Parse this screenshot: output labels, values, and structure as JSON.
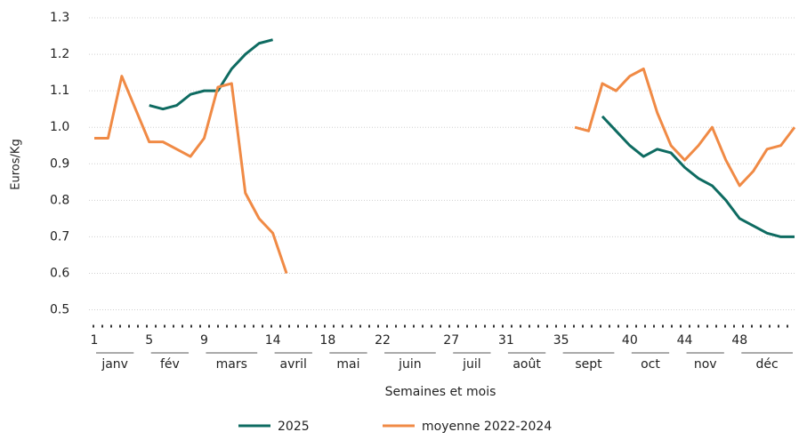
{
  "chart_data": {
    "type": "line",
    "x_label": "Semaines et mois",
    "y_label": "Euros/Kg",
    "x": [
      1,
      2,
      3,
      4,
      5,
      6,
      7,
      8,
      9,
      10,
      11,
      12,
      13,
      14,
      15,
      16,
      17,
      18,
      19,
      20,
      21,
      22,
      23,
      24,
      25,
      26,
      27,
      28,
      29,
      30,
      31,
      32,
      33,
      34,
      35,
      36,
      37,
      38,
      39,
      40,
      41,
      42,
      43,
      44,
      45,
      46,
      47,
      48,
      49,
      50,
      51,
      52
    ],
    "series": [
      {
        "name": "2025",
        "color": "#0e6b61",
        "values": [
          null,
          null,
          null,
          null,
          1.06,
          1.05,
          1.06,
          1.09,
          1.1,
          1.1,
          1.16,
          1.2,
          1.23,
          1.24,
          null,
          null,
          null,
          null,
          null,
          null,
          null,
          null,
          null,
          null,
          null,
          null,
          null,
          null,
          null,
          null,
          null,
          null,
          null,
          null,
          null,
          null,
          null,
          1.03,
          0.99,
          0.95,
          0.92,
          0.94,
          0.93,
          0.89,
          0.86,
          0.84,
          0.8,
          0.75,
          0.73,
          0.71,
          0.7,
          0.7
        ]
      },
      {
        "name": "moyenne 2022-2024",
        "color": "#f08a45",
        "values": [
          0.97,
          0.97,
          1.14,
          1.05,
          0.96,
          0.96,
          0.94,
          0.92,
          0.97,
          1.11,
          1.12,
          0.82,
          0.75,
          0.71,
          0.6,
          null,
          null,
          null,
          null,
          null,
          null,
          null,
          null,
          null,
          null,
          null,
          null,
          null,
          null,
          null,
          null,
          null,
          null,
          null,
          null,
          1.0,
          0.99,
          1.12,
          1.1,
          1.14,
          1.16,
          1.04,
          0.95,
          0.91,
          0.95,
          1.0,
          0.91,
          0.84,
          0.88,
          0.94,
          0.95,
          1.0
        ]
      }
    ],
    "xlim": [
      1,
      52
    ],
    "xticks": [
      1,
      5,
      9,
      14,
      18,
      22,
      27,
      31,
      35,
      40,
      44,
      48
    ],
    "months": [
      {
        "label": "janv",
        "start": 1,
        "end": 4
      },
      {
        "label": "fév",
        "start": 5,
        "end": 8
      },
      {
        "label": "mars",
        "start": 9,
        "end": 13
      },
      {
        "label": "avril",
        "start": 14,
        "end": 17
      },
      {
        "label": "mai",
        "start": 18,
        "end": 21
      },
      {
        "label": "juin",
        "start": 22,
        "end": 26
      },
      {
        "label": "juil",
        "start": 27,
        "end": 30
      },
      {
        "label": "août",
        "start": 31,
        "end": 34
      },
      {
        "label": "sept",
        "start": 35,
        "end": 39
      },
      {
        "label": "oct",
        "start": 40,
        "end": 43
      },
      {
        "label": "nov",
        "start": 44,
        "end": 47
      },
      {
        "label": "déc",
        "start": 48,
        "end": 52
      }
    ],
    "ylim": [
      0.455,
      1.3
    ],
    "yticks": [
      0.5,
      0.6,
      0.7,
      0.8,
      0.9,
      {
        "value": 1,
        "label": "1.0"
      },
      1.1,
      1.2,
      1.3
    ],
    "grid": true
  }
}
